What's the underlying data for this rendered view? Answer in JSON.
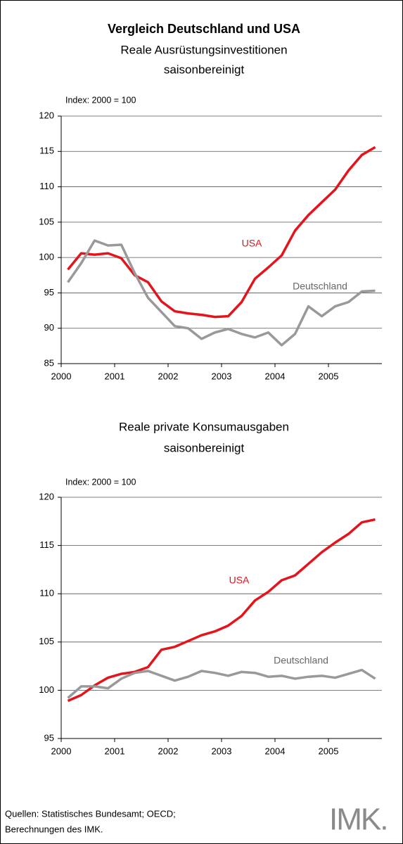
{
  "title": "Vergleich Deutschland und USA",
  "source": [
    "Quellen: Statistisches Bundesamt; OECD;",
    "Berechnungen des IMK."
  ],
  "logo": "IMK.",
  "chart_data": [
    {
      "type": "line",
      "title": "Reale Ausrüstungsinvestitionen",
      "subtitle": "saisonbereinigt",
      "y_label": "Index: 2000 = 100",
      "x": [
        2000.125,
        2000.375,
        2000.625,
        2000.875,
        2001.125,
        2001.375,
        2001.625,
        2001.875,
        2002.125,
        2002.375,
        2002.625,
        2002.875,
        2003.125,
        2003.375,
        2003.625,
        2003.875,
        2004.125,
        2004.375,
        2004.625,
        2004.875,
        2005.125,
        2005.375,
        2005.625,
        2005.875
      ],
      "series": [
        {
          "name": "USA",
          "color": "#e3141c",
          "values": [
            98.3,
            100.6,
            100.4,
            100.6,
            99.9,
            97.5,
            96.5,
            93.8,
            92.4,
            92.1,
            91.9,
            91.6,
            91.7,
            93.7,
            97.0,
            98.6,
            100.3,
            103.8,
            106.0,
            107.8,
            109.6,
            112.3,
            114.5,
            115.6
          ]
        },
        {
          "name": "Deutschland",
          "color": "#999999",
          "values": [
            96.5,
            99.2,
            102.4,
            101.7,
            101.8,
            97.8,
            94.3,
            92.3,
            90.3,
            90.0,
            88.5,
            89.4,
            89.9,
            89.2,
            88.7,
            89.4,
            87.6,
            89.2,
            93.1,
            91.7,
            93.1,
            93.7,
            95.2,
            95.3
          ]
        }
      ],
      "xlim": [
        2000,
        2006
      ],
      "xticks": [
        2000,
        2001,
        2002,
        2003,
        2004,
        2005
      ],
      "ylim": [
        85,
        120
      ],
      "yticks": [
        85,
        90,
        95,
        100,
        105,
        110,
        115,
        120
      ],
      "grid": true
    },
    {
      "type": "line",
      "title": "Reale private Konsumausgaben",
      "subtitle": "saisonbereinigt",
      "y_label": "Index: 2000 = 100",
      "x": [
        2000.125,
        2000.375,
        2000.625,
        2000.875,
        2001.125,
        2001.375,
        2001.625,
        2001.875,
        2002.125,
        2002.375,
        2002.625,
        2002.875,
        2003.125,
        2003.375,
        2003.625,
        2003.875,
        2004.125,
        2004.375,
        2004.625,
        2004.875,
        2005.125,
        2005.375,
        2005.625,
        2005.875
      ],
      "series": [
        {
          "name": "USA",
          "color": "#e3141c",
          "values": [
            98.9,
            99.5,
            100.5,
            101.3,
            101.7,
            101.9,
            102.4,
            104.2,
            104.5,
            105.1,
            105.7,
            106.1,
            106.7,
            107.7,
            109.3,
            110.2,
            111.4,
            111.9,
            113.1,
            114.3,
            115.3,
            116.2,
            117.4,
            117.7
          ]
        },
        {
          "name": "Deutschland",
          "color": "#999999",
          "values": [
            99.2,
            100.4,
            100.4,
            100.2,
            101.2,
            101.8,
            102.0,
            101.5,
            101.0,
            101.4,
            102.0,
            101.8,
            101.5,
            101.9,
            101.8,
            101.4,
            101.5,
            101.2,
            101.4,
            101.5,
            101.3,
            101.7,
            102.1,
            101.2
          ]
        }
      ],
      "xlim": [
        2000,
        2006
      ],
      "xticks": [
        2000,
        2001,
        2002,
        2003,
        2004,
        2005
      ],
      "ylim": [
        95,
        120
      ],
      "yticks": [
        95,
        100,
        105,
        110,
        115,
        120
      ],
      "grid": true
    }
  ]
}
